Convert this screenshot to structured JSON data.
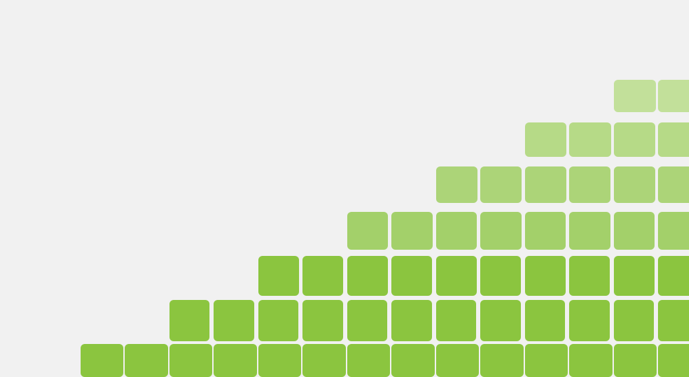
{
  "background_color": "#f1f1f1",
  "tile_colors": {
    "bottom": "#8bc53f",
    "row_2": "#8bc53f",
    "row_3": "#8bc53f",
    "row_4": "#a3d06a",
    "row_5": "#acd478",
    "row_6": "#b6da87",
    "row_7": "#c2e09a"
  },
  "staircase_rows": [
    {
      "row": "bottom",
      "tile_count": 14,
      "opacity": 1.0
    },
    {
      "row": "row_2",
      "tile_count": 12,
      "opacity": 1.0
    },
    {
      "row": "row_3",
      "tile_count": 10,
      "opacity": 1.0
    },
    {
      "row": "row_4",
      "tile_count": 8,
      "opacity": 0.85
    },
    {
      "row": "row_5",
      "tile_count": 6,
      "opacity": 0.8
    },
    {
      "row": "row_6",
      "tile_count": 4,
      "opacity": 0.75
    },
    {
      "row": "row_7",
      "tile_count": 2,
      "opacity": 0.65
    }
  ]
}
